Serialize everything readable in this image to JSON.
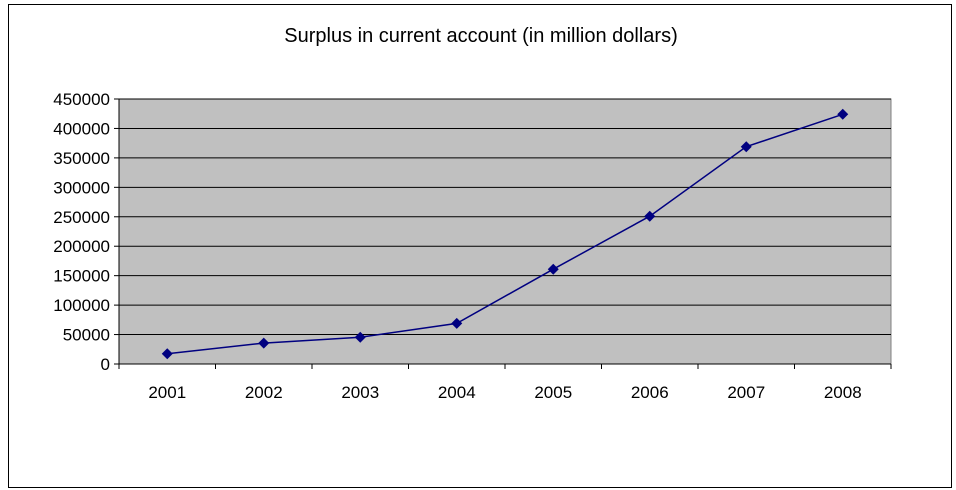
{
  "chart_data": {
    "type": "line",
    "title": "Surplus in current account (in million dollars)",
    "xlabel": "",
    "ylabel": "",
    "categories": [
      "2001",
      "2002",
      "2003",
      "2004",
      "2005",
      "2006",
      "2007",
      "2008"
    ],
    "series": [
      {
        "values": [
          17500,
          35500,
          45500,
          69000,
          161000,
          251000,
          369000,
          424000
        ]
      }
    ],
    "ylim": [
      0,
      450000
    ],
    "yticks": [
      0,
      50000,
      100000,
      150000,
      200000,
      250000,
      300000,
      350000,
      400000,
      450000
    ],
    "ytick_labels": [
      "0",
      "50000",
      "100000",
      "150000",
      "200000",
      "250000",
      "300000",
      "350000",
      "400000",
      "450000"
    ],
    "grid": true,
    "legend": "none",
    "colors": {
      "plot_background": "#c0c0c0",
      "line": "#000080",
      "marker": "#000080",
      "grid": "#000000"
    }
  }
}
